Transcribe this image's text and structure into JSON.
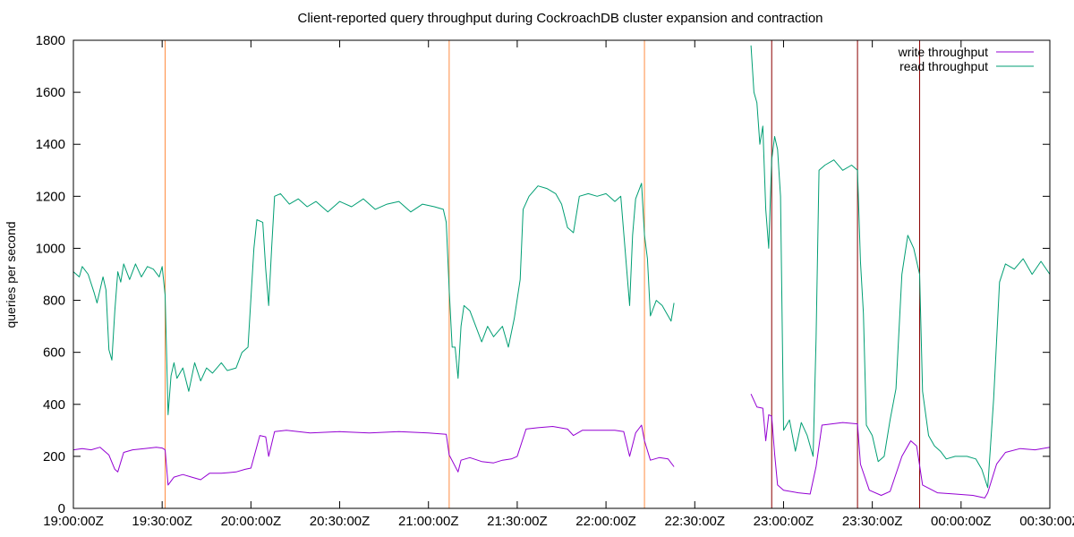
{
  "chart_data": {
    "type": "line",
    "title": "Client-reported query throughput during CockroachDB cluster expansion and contraction",
    "xlabel": "",
    "ylabel": "queries per second",
    "x_ticks": [
      "19:00:00Z",
      "19:30:00Z",
      "20:00:00Z",
      "20:30:00Z",
      "21:00:00Z",
      "21:30:00Z",
      "22:00:00Z",
      "22:30:00Z",
      "23:00:00Z",
      "23:30:00Z",
      "00:00:00Z",
      "00:30:00Z"
    ],
    "xlim": [
      "19:00",
      "00:30"
    ],
    "ylim": [
      0,
      1800
    ],
    "y_ticks": [
      0,
      200,
      400,
      600,
      800,
      1000,
      1200,
      1400,
      1600,
      1800
    ],
    "grid": false,
    "legend_position": "top-right",
    "colors": {
      "write": "#9400d3",
      "read": "#009e73",
      "expansion_marker": "#ff8c42",
      "contraction_marker": "#8b0000"
    },
    "vertical_markers": [
      {
        "time": "19:31",
        "kind": "expansion"
      },
      {
        "time": "21:07",
        "kind": "expansion"
      },
      {
        "time": "22:13",
        "kind": "expansion"
      },
      {
        "time": "22:56",
        "kind": "contraction"
      },
      {
        "time": "23:25",
        "kind": "contraction"
      },
      {
        "time": "23:46",
        "kind": "contraction"
      }
    ],
    "series": [
      {
        "name": "write throughput",
        "color": "#9400d3",
        "segments": [
          [
            [
              "19:00",
              225
            ],
            [
              "19:03",
              230
            ],
            [
              "19:06",
              225
            ],
            [
              "19:09",
              235
            ],
            [
              "19:12",
              205
            ],
            [
              "19:14",
              150
            ],
            [
              "19:15",
              140
            ],
            [
              "19:17",
              215
            ],
            [
              "19:20",
              225
            ],
            [
              "19:24",
              230
            ],
            [
              "19:28",
              235
            ],
            [
              "19:30",
              232
            ],
            [
              "19:31",
              225
            ],
            [
              "19:32",
              90
            ],
            [
              "19:34",
              120
            ],
            [
              "19:37",
              130
            ],
            [
              "19:40",
              120
            ],
            [
              "19:43",
              110
            ],
            [
              "19:46",
              135
            ],
            [
              "19:50",
              135
            ],
            [
              "19:55",
              140
            ],
            [
              "19:58",
              150
            ],
            [
              "20:00",
              155
            ],
            [
              "20:03",
              280
            ],
            [
              "20:05",
              275
            ],
            [
              "20:06",
              200
            ],
            [
              "20:08",
              295
            ],
            [
              "20:12",
              300
            ],
            [
              "20:20",
              290
            ],
            [
              "20:30",
              295
            ],
            [
              "20:40",
              290
            ],
            [
              "20:50",
              295
            ],
            [
              "21:00",
              290
            ],
            [
              "21:06",
              285
            ],
            [
              "21:07",
              205
            ],
            [
              "21:10",
              140
            ],
            [
              "21:11",
              185
            ],
            [
              "21:14",
              195
            ],
            [
              "21:18",
              180
            ],
            [
              "21:22",
              175
            ],
            [
              "21:25",
              185
            ],
            [
              "21:28",
              190
            ],
            [
              "21:30",
              200
            ],
            [
              "21:33",
              305
            ],
            [
              "21:37",
              310
            ],
            [
              "21:42",
              315
            ],
            [
              "21:47",
              305
            ],
            [
              "21:49",
              280
            ],
            [
              "21:52",
              300
            ],
            [
              "21:58",
              300
            ],
            [
              "22:03",
              300
            ],
            [
              "22:06",
              295
            ],
            [
              "22:08",
              200
            ],
            [
              "22:10",
              290
            ],
            [
              "22:12",
              320
            ],
            [
              "22:13",
              260
            ],
            [
              "22:15",
              185
            ],
            [
              "22:18",
              195
            ],
            [
              "22:21",
              190
            ],
            [
              "22:23",
              160
            ]
          ],
          [
            [
              "22:49",
              440
            ],
            [
              "22:51",
              390
            ],
            [
              "22:53",
              385
            ],
            [
              "22:54",
              260
            ],
            [
              "22:55",
              360
            ],
            [
              "22:56",
              355
            ],
            [
              "22:57",
              210
            ],
            [
              "22:58",
              90
            ],
            [
              "23:00",
              70
            ],
            [
              "23:05",
              60
            ],
            [
              "23:09",
              55
            ],
            [
              "23:11",
              160
            ],
            [
              "23:13",
              320
            ],
            [
              "23:20",
              330
            ],
            [
              "23:25",
              325
            ],
            [
              "23:26",
              170
            ],
            [
              "23:29",
              70
            ],
            [
              "23:33",
              50
            ],
            [
              "23:36",
              65
            ],
            [
              "23:40",
              200
            ],
            [
              "23:43",
              260
            ],
            [
              "23:45",
              240
            ],
            [
              "23:47",
              90
            ],
            [
              "23:52",
              60
            ],
            [
              "23:58",
              55
            ],
            [
              "00:04",
              50
            ],
            [
              "00:08",
              40
            ],
            [
              "00:09",
              60
            ],
            [
              "00:12",
              170
            ],
            [
              "00:15",
              215
            ],
            [
              "00:20",
              230
            ],
            [
              "00:25",
              225
            ],
            [
              "00:30",
              235
            ]
          ]
        ]
      },
      {
        "name": "read throughput",
        "color": "#009e73",
        "segments": [
          [
            [
              "19:00",
              910
            ],
            [
              "19:02",
              890
            ],
            [
              "19:03",
              930
            ],
            [
              "19:05",
              900
            ],
            [
              "19:07",
              830
            ],
            [
              "19:08",
              790
            ],
            [
              "19:10",
              890
            ],
            [
              "19:11",
              840
            ],
            [
              "19:12",
              610
            ],
            [
              "19:13",
              570
            ],
            [
              "19:14",
              760
            ],
            [
              "19:15",
              910
            ],
            [
              "19:16",
              870
            ],
            [
              "19:17",
              940
            ],
            [
              "19:19",
              880
            ],
            [
              "19:21",
              940
            ],
            [
              "19:23",
              890
            ],
            [
              "19:25",
              930
            ],
            [
              "19:27",
              920
            ],
            [
              "19:29",
              890
            ],
            [
              "19:30",
              930
            ],
            [
              "19:31",
              820
            ],
            [
              "19:32",
              360
            ],
            [
              "19:33",
              510
            ],
            [
              "19:34",
              560
            ],
            [
              "19:35",
              500
            ],
            [
              "19:37",
              540
            ],
            [
              "19:39",
              450
            ],
            [
              "19:41",
              560
            ],
            [
              "19:43",
              490
            ],
            [
              "19:45",
              540
            ],
            [
              "19:47",
              520
            ],
            [
              "19:50",
              560
            ],
            [
              "19:52",
              530
            ],
            [
              "19:55",
              540
            ],
            [
              "19:57",
              600
            ],
            [
              "19:59",
              620
            ],
            [
              "20:01",
              1000
            ],
            [
              "20:02",
              1110
            ],
            [
              "20:04",
              1100
            ],
            [
              "20:05",
              920
            ],
            [
              "20:06",
              780
            ],
            [
              "20:07",
              1000
            ],
            [
              "20:08",
              1200
            ],
            [
              "20:10",
              1210
            ],
            [
              "20:13",
              1170
            ],
            [
              "20:16",
              1190
            ],
            [
              "20:19",
              1160
            ],
            [
              "20:22",
              1180
            ],
            [
              "20:26",
              1140
            ],
            [
              "20:30",
              1180
            ],
            [
              "20:34",
              1160
            ],
            [
              "20:38",
              1190
            ],
            [
              "20:42",
              1150
            ],
            [
              "20:46",
              1170
            ],
            [
              "20:50",
              1180
            ],
            [
              "20:54",
              1140
            ],
            [
              "20:58",
              1170
            ],
            [
              "21:02",
              1160
            ],
            [
              "21:05",
              1150
            ],
            [
              "21:06",
              1100
            ],
            [
              "21:07",
              840
            ],
            [
              "21:08",
              620
            ],
            [
              "21:09",
              620
            ],
            [
              "21:10",
              500
            ],
            [
              "21:11",
              700
            ],
            [
              "21:12",
              780
            ],
            [
              "21:14",
              760
            ],
            [
              "21:16",
              700
            ],
            [
              "21:18",
              640
            ],
            [
              "21:20",
              700
            ],
            [
              "21:22",
              660
            ],
            [
              "21:25",
              700
            ],
            [
              "21:27",
              620
            ],
            [
              "21:29",
              730
            ],
            [
              "21:31",
              880
            ],
            [
              "21:32",
              1150
            ],
            [
              "21:34",
              1200
            ],
            [
              "21:37",
              1240
            ],
            [
              "21:40",
              1230
            ],
            [
              "21:43",
              1210
            ],
            [
              "21:45",
              1170
            ],
            [
              "21:47",
              1080
            ],
            [
              "21:49",
              1060
            ],
            [
              "21:51",
              1200
            ],
            [
              "21:54",
              1210
            ],
            [
              "21:57",
              1200
            ],
            [
              "22:00",
              1210
            ],
            [
              "22:03",
              1180
            ],
            [
              "22:05",
              1200
            ],
            [
              "22:07",
              920
            ],
            [
              "22:08",
              780
            ],
            [
              "22:09",
              1050
            ],
            [
              "22:10",
              1190
            ],
            [
              "22:12",
              1250
            ],
            [
              "22:13",
              1050
            ],
            [
              "22:14",
              960
            ],
            [
              "22:15",
              740
            ],
            [
              "22:17",
              800
            ],
            [
              "22:19",
              780
            ],
            [
              "22:20",
              760
            ],
            [
              "22:22",
              720
            ],
            [
              "22:23",
              790
            ]
          ],
          [
            [
              "22:49",
              1780
            ],
            [
              "22:50",
              1600
            ],
            [
              "22:51",
              1560
            ],
            [
              "22:52",
              1400
            ],
            [
              "22:53",
              1470
            ],
            [
              "22:54",
              1150
            ],
            [
              "22:55",
              1000
            ],
            [
              "22:56",
              1340
            ],
            [
              "22:57",
              1430
            ],
            [
              "22:58",
              1380
            ],
            [
              "22:59",
              1200
            ],
            [
              "23:00",
              300
            ],
            [
              "23:02",
              340
            ],
            [
              "23:04",
              220
            ],
            [
              "23:06",
              330
            ],
            [
              "23:08",
              280
            ],
            [
              "23:10",
              200
            ],
            [
              "23:11",
              650
            ],
            [
              "23:12",
              1300
            ],
            [
              "23:14",
              1320
            ],
            [
              "23:17",
              1340
            ],
            [
              "23:20",
              1300
            ],
            [
              "23:23",
              1320
            ],
            [
              "23:25",
              1300
            ],
            [
              "23:26",
              950
            ],
            [
              "23:27",
              750
            ],
            [
              "23:28",
              320
            ],
            [
              "23:30",
              280
            ],
            [
              "23:32",
              180
            ],
            [
              "23:34",
              200
            ],
            [
              "23:36",
              340
            ],
            [
              "23:38",
              460
            ],
            [
              "23:40",
              900
            ],
            [
              "23:42",
              1050
            ],
            [
              "23:44",
              1000
            ],
            [
              "23:46",
              900
            ],
            [
              "23:47",
              450
            ],
            [
              "23:49",
              280
            ],
            [
              "23:51",
              240
            ],
            [
              "23:53",
              220
            ],
            [
              "23:55",
              190
            ],
            [
              "23:58",
              200
            ],
            [
              "00:02",
              200
            ],
            [
              "00:05",
              190
            ],
            [
              "00:07",
              150
            ],
            [
              "00:09",
              80
            ],
            [
              "00:11",
              420
            ],
            [
              "00:13",
              870
            ],
            [
              "00:15",
              940
            ],
            [
              "00:18",
              920
            ],
            [
              "00:21",
              960
            ],
            [
              "00:24",
              900
            ],
            [
              "00:27",
              950
            ],
            [
              "00:30",
              900
            ]
          ]
        ]
      }
    ]
  }
}
